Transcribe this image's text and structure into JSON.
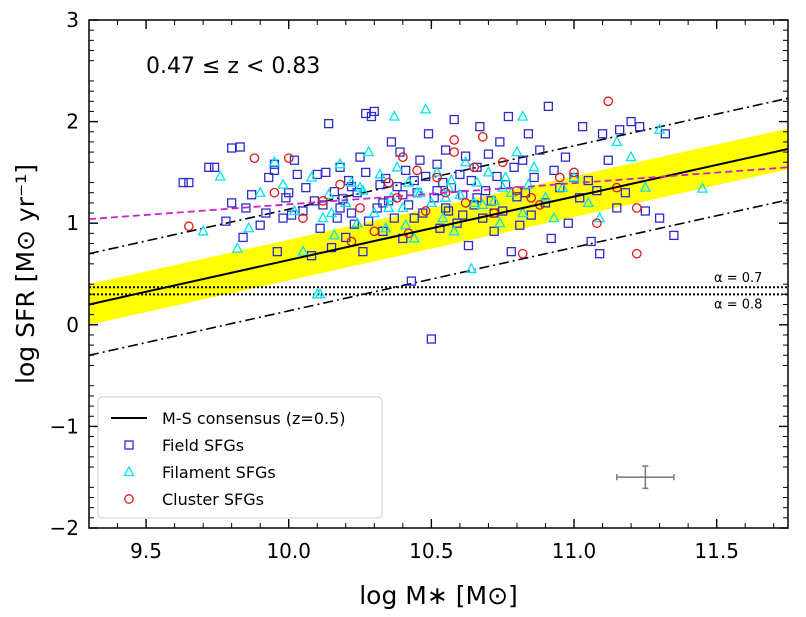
{
  "chart_data": {
    "type": "scatter",
    "title": "",
    "xlabel": "log M∗ [M⊙]",
    "ylabel": "log SFR [M⊙ yr⁻¹]",
    "xlim": [
      9.3,
      11.75
    ],
    "ylim": [
      -2,
      3
    ],
    "xticks": [
      9.5,
      10.0,
      10.5,
      11.0,
      11.5
    ],
    "xtick_labels": [
      "9.5",
      "10.0",
      "10.5",
      "11.0",
      "11.5"
    ],
    "yticks": [
      -2,
      -1,
      0,
      1,
      2,
      3
    ],
    "ytick_labels": [
      "−2",
      "−1",
      "0",
      "1",
      "2",
      "3"
    ],
    "redshift_label": "0.47 ≤  z < 0.83",
    "alpha_labels": [
      {
        "text": "α = 0.7",
        "y": 0.37
      },
      {
        "text": "α = 0.8",
        "y": 0.3
      }
    ],
    "consensus": {
      "name": "M-S consensus (z=0.5)",
      "x": [
        9.3,
        11.75
      ],
      "y": [
        0.2,
        1.73
      ],
      "band_halfwidth": 0.2,
      "offset": 0.5
    },
    "magenta_fit": {
      "x": [
        9.3,
        11.75
      ],
      "y": [
        1.04,
        1.55
      ]
    },
    "error_bar": {
      "x": 11.25,
      "y": -1.5,
      "xerr": 0.1,
      "yerr": 0.11
    },
    "series": [
      {
        "name": "Field SFGs",
        "marker": "square",
        "color": "#2b2bd0"
      },
      {
        "name": "Filament SFGs",
        "marker": "triangle",
        "color": "#00e5ee"
      },
      {
        "name": "Cluster SFGs",
        "marker": "circle",
        "color": "#e01818"
      }
    ],
    "points": {
      "field": [
        [
          9.63,
          1.4
        ],
        [
          9.65,
          1.4
        ],
        [
          9.72,
          1.55
        ],
        [
          9.74,
          1.55
        ],
        [
          9.78,
          1.02
        ],
        [
          9.8,
          1.2
        ],
        [
          9.8,
          1.74
        ],
        [
          9.83,
          1.75
        ],
        [
          9.84,
          0.86
        ],
        [
          9.85,
          1.15
        ],
        [
          9.87,
          1.28
        ],
        [
          9.9,
          0.98
        ],
        [
          9.92,
          1.1
        ],
        [
          9.93,
          1.45
        ],
        [
          9.95,
          1.52
        ],
        [
          9.95,
          1.58
        ],
        [
          9.96,
          0.72
        ],
        [
          9.98,
          1.05
        ],
        [
          9.99,
          1.25
        ],
        [
          10.0,
          1.3
        ],
        [
          10.01,
          1.08
        ],
        [
          10.02,
          1.62
        ],
        [
          10.03,
          1.48
        ],
        [
          10.05,
          1.12
        ],
        [
          10.06,
          1.35
        ],
        [
          10.08,
          0.68
        ],
        [
          10.09,
          1.22
        ],
        [
          10.1,
          1.48
        ],
        [
          10.11,
          0.95
        ],
        [
          10.12,
          1.18
        ],
        [
          10.13,
          1.5
        ],
        [
          10.14,
          1.98
        ],
        [
          10.15,
          0.76
        ],
        [
          10.16,
          1.31
        ],
        [
          10.17,
          1.05
        ],
        [
          10.18,
          1.55
        ],
        [
          10.19,
          1.24
        ],
        [
          10.2,
          0.86
        ],
        [
          10.21,
          1.42
        ],
        [
          10.22,
          1.1
        ],
        [
          10.23,
          0.99
        ],
        [
          10.24,
          1.3
        ],
        [
          10.25,
          1.65
        ],
        [
          10.26,
          0.72
        ],
        [
          10.27,
          1.5
        ],
        [
          10.28,
          1.02
        ],
        [
          10.29,
          2.05
        ],
        [
          10.3,
          2.1
        ],
        [
          10.31,
          1.15
        ],
        [
          10.32,
          1.38
        ],
        [
          10.33,
          0.92
        ],
        [
          10.34,
          1.44
        ],
        [
          10.35,
          1.22
        ],
        [
          10.36,
          1.8
        ],
        [
          10.37,
          1.05
        ],
        [
          10.38,
          1.36
        ],
        [
          10.39,
          1.7
        ],
        [
          10.4,
          0.85
        ],
        [
          10.41,
          1.52
        ],
        [
          10.42,
          1.18
        ],
        [
          10.43,
          0.43
        ],
        [
          10.44,
          1.42
        ],
        [
          10.45,
          1.3
        ],
        [
          10.46,
          1.62
        ],
        [
          10.47,
          1.1
        ],
        [
          10.48,
          1.46
        ],
        [
          10.49,
          1.88
        ],
        [
          10.5,
          -0.14
        ],
        [
          10.51,
          1.25
        ],
        [
          10.52,
          1.58
        ],
        [
          10.53,
          0.95
        ],
        [
          10.54,
          1.4
        ],
        [
          10.55,
          1.72
        ],
        [
          10.56,
          1.12
        ],
        [
          10.57,
          1.35
        ],
        [
          10.58,
          2.02
        ],
        [
          10.59,
          1.0
        ],
        [
          10.6,
          1.48
        ],
        [
          10.61,
          1.28
        ],
        [
          10.62,
          1.66
        ],
        [
          10.63,
          0.78
        ],
        [
          10.64,
          1.42
        ],
        [
          10.65,
          1.18
        ],
        [
          10.66,
          1.55
        ],
        [
          10.67,
          1.95
        ],
        [
          10.68,
          1.05
        ],
        [
          10.69,
          1.32
        ],
        [
          10.7,
          1.68
        ],
        [
          10.71,
          1.22
        ],
        [
          10.72,
          0.92
        ],
        [
          10.73,
          1.46
        ],
        [
          10.74,
          1.8
        ],
        [
          10.75,
          1.12
        ],
        [
          10.76,
          1.38
        ],
        [
          10.77,
          2.05
        ],
        [
          10.78,
          0.72
        ],
        [
          10.79,
          1.55
        ],
        [
          10.8,
          1.26
        ],
        [
          10.81,
          0.98
        ],
        [
          10.82,
          1.62
        ],
        [
          10.83,
          1.3
        ],
        [
          10.84,
          1.88
        ],
        [
          10.85,
          1.08
        ],
        [
          10.86,
          1.45
        ],
        [
          10.88,
          1.72
        ],
        [
          10.9,
          1.2
        ],
        [
          10.91,
          2.15
        ],
        [
          10.92,
          0.85
        ],
        [
          10.93,
          1.52
        ],
        [
          10.95,
          1.35
        ],
        [
          10.97,
          1.65
        ],
        [
          10.98,
          1.0
        ],
        [
          11.0,
          1.45
        ],
        [
          11.02,
          1.25
        ],
        [
          11.03,
          1.95
        ],
        [
          11.05,
          1.42
        ],
        [
          11.06,
          0.82
        ],
        [
          11.08,
          1.32
        ],
        [
          11.09,
          0.7
        ],
        [
          11.1,
          1.88
        ],
        [
          11.12,
          1.62
        ],
        [
          11.15,
          1.15
        ],
        [
          11.16,
          1.92
        ],
        [
          11.18,
          1.3
        ],
        [
          11.2,
          2.0
        ],
        [
          11.25,
          1.12
        ],
        [
          11.3,
          1.05
        ],
        [
          11.35,
          0.88
        ],
        [
          11.32,
          1.88
        ],
        [
          11.23,
          1.95
        ],
        [
          10.27,
          2.08
        ],
        [
          10.33,
          1.2
        ],
        [
          10.44,
          1.05
        ],
        [
          10.52,
          1.32
        ],
        [
          10.61,
          1.08
        ],
        [
          10.4,
          1.28
        ],
        [
          10.55,
          1.15
        ],
        [
          10.66,
          1.25
        ],
        [
          10.72,
          1.1
        ],
        [
          10.18,
          1.15
        ],
        [
          10.22,
          1.36
        ]
      ],
      "filament": [
        [
          9.7,
          0.92
        ],
        [
          9.76,
          1.46
        ],
        [
          9.82,
          0.75
        ],
        [
          9.86,
          0.95
        ],
        [
          9.9,
          1.3
        ],
        [
          9.95,
          1.6
        ],
        [
          9.98,
          1.38
        ],
        [
          10.02,
          1.12
        ],
        [
          10.05,
          0.72
        ],
        [
          10.08,
          1.45
        ],
        [
          10.1,
          0.3
        ],
        [
          10.12,
          1.05
        ],
        [
          10.14,
          1.28
        ],
        [
          10.16,
          0.88
        ],
        [
          10.18,
          1.58
        ],
        [
          10.2,
          1.2
        ],
        [
          10.22,
          1.4
        ],
        [
          10.24,
          1.0
        ],
        [
          10.26,
          1.32
        ],
        [
          10.28,
          1.7
        ],
        [
          10.3,
          1.1
        ],
        [
          10.32,
          1.48
        ],
        [
          10.34,
          0.95
        ],
        [
          10.36,
          1.25
        ],
        [
          10.38,
          1.55
        ],
        [
          10.4,
          1.15
        ],
        [
          10.42,
          1.4
        ],
        [
          10.44,
          0.85
        ],
        [
          10.46,
          1.3
        ],
        [
          10.48,
          2.12
        ],
        [
          10.5,
          1.2
        ],
        [
          10.52,
          1.5
        ],
        [
          10.54,
          1.05
        ],
        [
          10.56,
          1.35
        ],
        [
          10.58,
          0.92
        ],
        [
          10.6,
          1.28
        ],
        [
          10.62,
          1.6
        ],
        [
          10.64,
          0.55
        ],
        [
          10.66,
          1.4
        ],
        [
          10.68,
          1.18
        ],
        [
          10.7,
          1.5
        ],
        [
          10.72,
          1.22
        ],
        [
          10.74,
          1.0
        ],
        [
          10.76,
          1.45
        ],
        [
          10.78,
          1.3
        ],
        [
          10.8,
          1.7
        ],
        [
          10.82,
          1.1
        ],
        [
          10.84,
          1.38
        ],
        [
          10.86,
          1.55
        ],
        [
          10.9,
          1.25
        ],
        [
          10.93,
          1.05
        ],
        [
          10.96,
          1.35
        ],
        [
          11.0,
          1.45
        ],
        [
          11.05,
          1.2
        ],
        [
          11.09,
          1.05
        ],
        [
          11.15,
          1.8
        ],
        [
          11.2,
          1.65
        ],
        [
          11.25,
          1.35
        ],
        [
          11.3,
          1.92
        ],
        [
          11.45,
          1.34
        ],
        [
          10.37,
          2.05
        ],
        [
          10.15,
          1.1
        ],
        [
          10.25,
          1.35
        ],
        [
          10.35,
          1.15
        ],
        [
          10.45,
          1.3
        ],
        [
          10.55,
          1.25
        ],
        [
          10.65,
          1.2
        ],
        [
          10.75,
          1.35
        ],
        [
          10.41,
          0.98
        ],
        [
          10.57,
          1.42
        ],
        [
          10.11,
          0.3
        ],
        [
          10.82,
          2.05
        ]
      ],
      "cluster": [
        [
          9.65,
          0.97
        ],
        [
          9.88,
          1.64
        ],
        [
          9.95,
          1.3
        ],
        [
          10.0,
          1.64
        ],
        [
          10.05,
          1.05
        ],
        [
          10.12,
          1.22
        ],
        [
          10.18,
          1.38
        ],
        [
          10.25,
          1.15
        ],
        [
          10.3,
          0.92
        ],
        [
          10.35,
          1.4
        ],
        [
          10.38,
          1.25
        ],
        [
          10.42,
          0.9
        ],
        [
          10.45,
          1.52
        ],
        [
          10.48,
          1.12
        ],
        [
          10.52,
          1.45
        ],
        [
          10.55,
          1.3
        ],
        [
          10.58,
          1.7
        ],
        [
          10.62,
          1.2
        ],
        [
          10.65,
          1.55
        ],
        [
          10.68,
          1.85
        ],
        [
          10.72,
          1.1
        ],
        [
          10.75,
          1.6
        ],
        [
          10.8,
          1.32
        ],
        [
          10.82,
          0.7
        ],
        [
          10.85,
          1.25
        ],
        [
          10.88,
          1.18
        ],
        [
          10.95,
          1.45
        ],
        [
          11.0,
          1.5
        ],
        [
          11.08,
          1.0
        ],
        [
          11.12,
          2.2
        ],
        [
          11.15,
          1.35
        ],
        [
          11.22,
          0.7
        ],
        [
          11.22,
          1.15
        ],
        [
          10.58,
          1.82
        ],
        [
          10.4,
          1.65
        ],
        [
          10.22,
          0.82
        ]
      ]
    }
  }
}
